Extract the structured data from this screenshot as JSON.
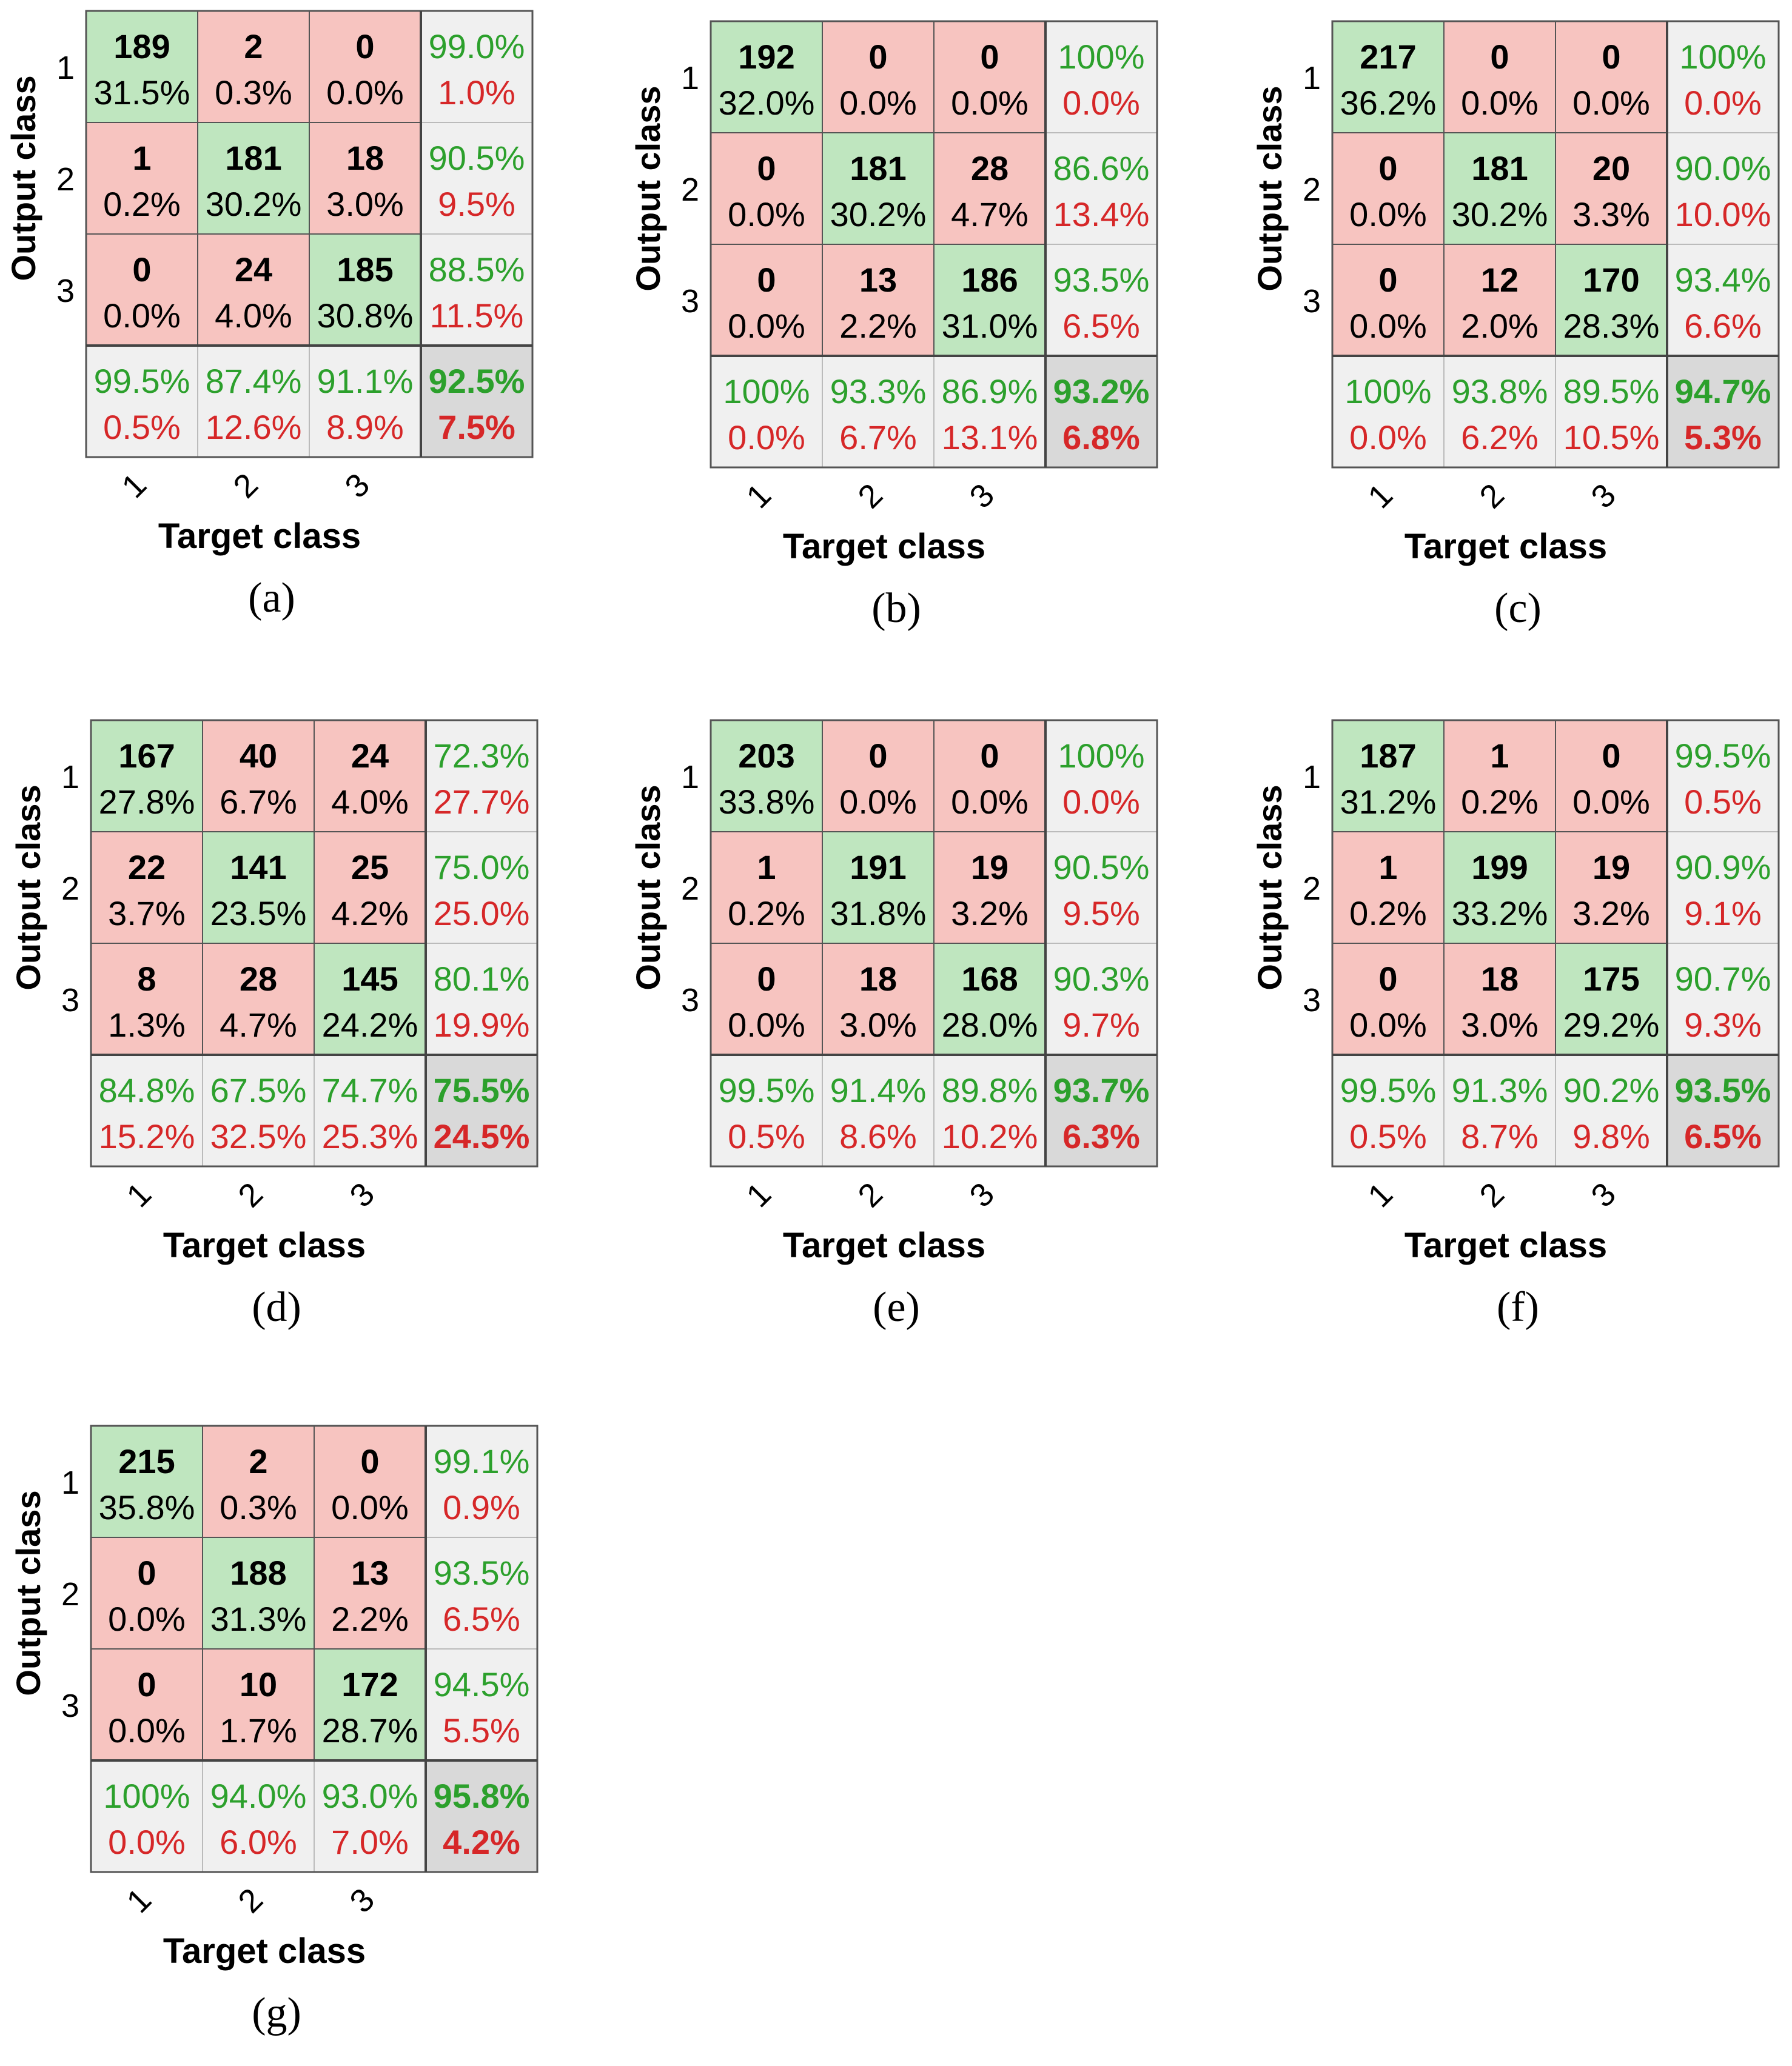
{
  "figure": {
    "output_label": "Output class",
    "target_label": "Target class",
    "class_labels": [
      "1",
      "2",
      "3"
    ],
    "colors": {
      "correct_fill": "#bfe6bf",
      "wrong_fill": "#f7c4c0",
      "summary_fill": "#f0f0f0",
      "overall_fill": "#d9d9d9",
      "green_text": "#2ca02c",
      "red_text": "#d62728",
      "border": "#555555"
    }
  },
  "chart_data": [
    {
      "type": "heatmap",
      "caption": "(a)",
      "cells": [
        [
          {
            "count": "189",
            "pct": "31.5%"
          },
          {
            "count": "2",
            "pct": "0.3%"
          },
          {
            "count": "0",
            "pct": "0.0%"
          }
        ],
        [
          {
            "count": "1",
            "pct": "0.2%"
          },
          {
            "count": "181",
            "pct": "30.2%"
          },
          {
            "count": "18",
            "pct": "3.0%"
          }
        ],
        [
          {
            "count": "0",
            "pct": "0.0%"
          },
          {
            "count": "24",
            "pct": "4.0%"
          },
          {
            "count": "185",
            "pct": "30.8%"
          }
        ]
      ],
      "row_summary": [
        [
          "99.0%",
          "1.0%"
        ],
        [
          "90.5%",
          "9.5%"
        ],
        [
          "88.5%",
          "11.5%"
        ]
      ],
      "col_summary": [
        [
          "99.5%",
          "0.5%"
        ],
        [
          "87.4%",
          "12.6%"
        ],
        [
          "91.1%",
          "8.9%"
        ]
      ],
      "overall": [
        "92.5%",
        "7.5%"
      ]
    },
    {
      "type": "heatmap",
      "caption": "(b)",
      "cells": [
        [
          {
            "count": "192",
            "pct": "32.0%"
          },
          {
            "count": "0",
            "pct": "0.0%"
          },
          {
            "count": "0",
            "pct": "0.0%"
          }
        ],
        [
          {
            "count": "0",
            "pct": "0.0%"
          },
          {
            "count": "181",
            "pct": "30.2%"
          },
          {
            "count": "28",
            "pct": "4.7%"
          }
        ],
        [
          {
            "count": "0",
            "pct": "0.0%"
          },
          {
            "count": "13",
            "pct": "2.2%"
          },
          {
            "count": "186",
            "pct": "31.0%"
          }
        ]
      ],
      "row_summary": [
        [
          "100%",
          "0.0%"
        ],
        [
          "86.6%",
          "13.4%"
        ],
        [
          "93.5%",
          "6.5%"
        ]
      ],
      "col_summary": [
        [
          "100%",
          "0.0%"
        ],
        [
          "93.3%",
          "6.7%"
        ],
        [
          "86.9%",
          "13.1%"
        ]
      ],
      "overall": [
        "93.2%",
        "6.8%"
      ]
    },
    {
      "type": "heatmap",
      "caption": "(c)",
      "cells": [
        [
          {
            "count": "217",
            "pct": "36.2%"
          },
          {
            "count": "0",
            "pct": "0.0%"
          },
          {
            "count": "0",
            "pct": "0.0%"
          }
        ],
        [
          {
            "count": "0",
            "pct": "0.0%"
          },
          {
            "count": "181",
            "pct": "30.2%"
          },
          {
            "count": "20",
            "pct": "3.3%"
          }
        ],
        [
          {
            "count": "0",
            "pct": "0.0%"
          },
          {
            "count": "12",
            "pct": "2.0%"
          },
          {
            "count": "170",
            "pct": "28.3%"
          }
        ]
      ],
      "row_summary": [
        [
          "100%",
          "0.0%"
        ],
        [
          "90.0%",
          "10.0%"
        ],
        [
          "93.4%",
          "6.6%"
        ]
      ],
      "col_summary": [
        [
          "100%",
          "0.0%"
        ],
        [
          "93.8%",
          "6.2%"
        ],
        [
          "89.5%",
          "10.5%"
        ]
      ],
      "overall": [
        "94.7%",
        "5.3%"
      ]
    },
    {
      "type": "heatmap",
      "caption": "(d)",
      "cells": [
        [
          {
            "count": "167",
            "pct": "27.8%"
          },
          {
            "count": "40",
            "pct": "6.7%"
          },
          {
            "count": "24",
            "pct": "4.0%"
          }
        ],
        [
          {
            "count": "22",
            "pct": "3.7%"
          },
          {
            "count": "141",
            "pct": "23.5%"
          },
          {
            "count": "25",
            "pct": "4.2%"
          }
        ],
        [
          {
            "count": "8",
            "pct": "1.3%"
          },
          {
            "count": "28",
            "pct": "4.7%"
          },
          {
            "count": "145",
            "pct": "24.2%"
          }
        ]
      ],
      "row_summary": [
        [
          "72.3%",
          "27.7%"
        ],
        [
          "75.0%",
          "25.0%"
        ],
        [
          "80.1%",
          "19.9%"
        ]
      ],
      "col_summary": [
        [
          "84.8%",
          "15.2%"
        ],
        [
          "67.5%",
          "32.5%"
        ],
        [
          "74.7%",
          "25.3%"
        ]
      ],
      "overall": [
        "75.5%",
        "24.5%"
      ]
    },
    {
      "type": "heatmap",
      "caption": "(e)",
      "cells": [
        [
          {
            "count": "203",
            "pct": "33.8%"
          },
          {
            "count": "0",
            "pct": "0.0%"
          },
          {
            "count": "0",
            "pct": "0.0%"
          }
        ],
        [
          {
            "count": "1",
            "pct": "0.2%"
          },
          {
            "count": "191",
            "pct": "31.8%"
          },
          {
            "count": "19",
            "pct": "3.2%"
          }
        ],
        [
          {
            "count": "0",
            "pct": "0.0%"
          },
          {
            "count": "18",
            "pct": "3.0%"
          },
          {
            "count": "168",
            "pct": "28.0%"
          }
        ]
      ],
      "row_summary": [
        [
          "100%",
          "0.0%"
        ],
        [
          "90.5%",
          "9.5%"
        ],
        [
          "90.3%",
          "9.7%"
        ]
      ],
      "col_summary": [
        [
          "99.5%",
          "0.5%"
        ],
        [
          "91.4%",
          "8.6%"
        ],
        [
          "89.8%",
          "10.2%"
        ]
      ],
      "overall": [
        "93.7%",
        "6.3%"
      ]
    },
    {
      "type": "heatmap",
      "caption": "(f)",
      "cells": [
        [
          {
            "count": "187",
            "pct": "31.2%"
          },
          {
            "count": "1",
            "pct": "0.2%"
          },
          {
            "count": "0",
            "pct": "0.0%"
          }
        ],
        [
          {
            "count": "1",
            "pct": "0.2%"
          },
          {
            "count": "199",
            "pct": "33.2%"
          },
          {
            "count": "19",
            "pct": "3.2%"
          }
        ],
        [
          {
            "count": "0",
            "pct": "0.0%"
          },
          {
            "count": "18",
            "pct": "3.0%"
          },
          {
            "count": "175",
            "pct": "29.2%"
          }
        ]
      ],
      "row_summary": [
        [
          "99.5%",
          "0.5%"
        ],
        [
          "90.9%",
          "9.1%"
        ],
        [
          "90.7%",
          "9.3%"
        ]
      ],
      "col_summary": [
        [
          "99.5%",
          "0.5%"
        ],
        [
          "91.3%",
          "8.7%"
        ],
        [
          "90.2%",
          "9.8%"
        ]
      ],
      "overall": [
        "93.5%",
        "6.5%"
      ]
    },
    {
      "type": "heatmap",
      "caption": "(g)",
      "cells": [
        [
          {
            "count": "215",
            "pct": "35.8%"
          },
          {
            "count": "2",
            "pct": "0.3%"
          },
          {
            "count": "0",
            "pct": "0.0%"
          }
        ],
        [
          {
            "count": "0",
            "pct": "0.0%"
          },
          {
            "count": "188",
            "pct": "31.3%"
          },
          {
            "count": "13",
            "pct": "2.2%"
          }
        ],
        [
          {
            "count": "0",
            "pct": "0.0%"
          },
          {
            "count": "10",
            "pct": "1.7%"
          },
          {
            "count": "172",
            "pct": "28.7%"
          }
        ]
      ],
      "row_summary": [
        [
          "99.1%",
          "0.9%"
        ],
        [
          "93.5%",
          "6.5%"
        ],
        [
          "94.5%",
          "5.5%"
        ]
      ],
      "col_summary": [
        [
          "100%",
          "0.0%"
        ],
        [
          "94.0%",
          "6.0%"
        ],
        [
          "93.0%",
          "7.0%"
        ]
      ],
      "overall": [
        "95.8%",
        "4.2%"
      ]
    }
  ]
}
